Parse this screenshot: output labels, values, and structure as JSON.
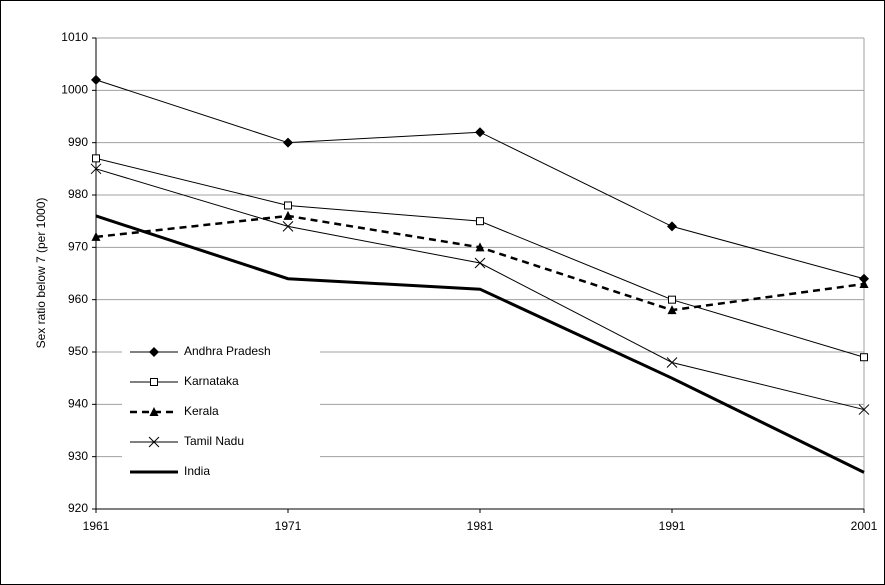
{
  "chart_data": {
    "type": "line",
    "y_label": "Sex ratio below 7 (per 1000)",
    "categories": [
      "1961",
      "1971",
      "1981",
      "1991",
      "2001"
    ],
    "series": [
      {
        "name": "Andhra Pradesh",
        "color": "#000000",
        "marker": "diamond",
        "style": "solid",
        "width": 1,
        "values": [
          1002,
          990,
          992,
          974,
          964
        ]
      },
      {
        "name": "Karnataka",
        "color": "#000000",
        "marker": "square",
        "style": "solid",
        "width": 1,
        "values": [
          987,
          978,
          975,
          960,
          949
        ]
      },
      {
        "name": "Kerala",
        "color": "#000000",
        "marker": "triangle",
        "style": "dashed",
        "width": 2.5,
        "values": [
          972,
          976,
          970,
          958,
          963
        ]
      },
      {
        "name": "Tamil Nadu",
        "color": "#000000",
        "marker": "x",
        "style": "solid",
        "width": 1,
        "values": [
          985,
          974,
          967,
          948,
          939
        ]
      },
      {
        "name": "India",
        "color": "#000000",
        "marker": "none",
        "style": "solid",
        "width": 3,
        "values": [
          976,
          964,
          962,
          945,
          927
        ]
      }
    ],
    "ylim": [
      920,
      1010
    ],
    "yticks": [
      920,
      930,
      940,
      950,
      960,
      970,
      980,
      990,
      1000,
      1010
    ],
    "grid": true,
    "legend": "lower-left"
  }
}
